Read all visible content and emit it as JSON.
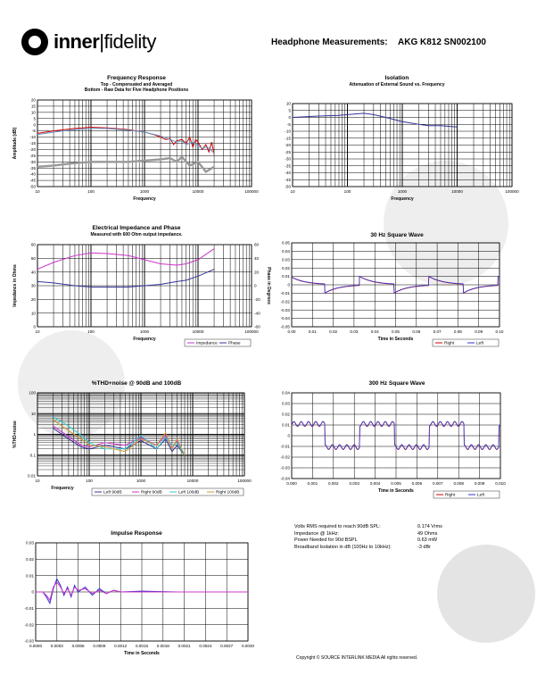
{
  "header": {
    "logo_left": "inner",
    "logo_right": "fidelity",
    "title": "Headphone Measurements:",
    "model": "AKG K812 SN002100"
  },
  "specs": [
    {
      "label": "Volts RMS required to reach 90dB SPL:",
      "value": "0.174 Vrms"
    },
    {
      "label": "Impedance @ 1kHz:",
      "value": "49 Ohms"
    },
    {
      "label": "Power Needed for 90d BSPL",
      "value": "0.63 mW"
    },
    {
      "label": "Broadband Isolation in dB (100Hz to 10kHz):",
      "value": "-3 dBr"
    }
  ],
  "copyright": "Copyright © SOURCE INTERLINK MEDIA All rights reserved.",
  "chart_data": [
    {
      "id": "fr",
      "type": "line",
      "title": "Frequency Response",
      "subtitle": "Top - Compensated and Averaged\nBottom - Raw Data for Five Headphone Positions",
      "xlabel": "Frequency",
      "ylabel": "Amplitude (dB)",
      "xscale": "log",
      "xlim": [
        10,
        100000
      ],
      "ylim": [
        -50,
        20
      ],
      "xticks": [
        "10",
        "100",
        "1000",
        "10000",
        "100000"
      ],
      "yticks": [
        "20",
        "15",
        "10",
        "5",
        "0",
        "-5",
        "-10",
        "-15",
        "-20",
        "-25",
        "-30",
        "-35",
        "-40",
        "-45",
        "-50"
      ],
      "series": [
        {
          "color": "#cc0000",
          "x": [
            10,
            20,
            50,
            100,
            200,
            500,
            1000,
            1500,
            2000,
            2500,
            3000,
            3500,
            4000,
            5000,
            6000,
            7000,
            8000,
            9000,
            10000,
            12000,
            14000,
            16000,
            18000,
            20000
          ],
          "y": [
            -7,
            -5,
            -3,
            -2,
            -2.5,
            -4,
            -6,
            -8,
            -10,
            -12,
            -11,
            -16,
            -13,
            -12,
            -15,
            -10,
            -18,
            -12,
            -14,
            -20,
            -16,
            -22,
            -14,
            -24
          ]
        },
        {
          "color": "#6699cc",
          "x": [
            10,
            20,
            50,
            100,
            200,
            500,
            1000,
            2000,
            3000,
            4000,
            5000,
            6000,
            8000,
            10000,
            12000,
            15000,
            20000
          ],
          "y": [
            -8,
            -6,
            -4,
            -3,
            -3,
            -4.5,
            -6,
            -9,
            -12,
            -14,
            -13,
            -16,
            -14,
            -17,
            -19,
            -18,
            -23
          ]
        },
        {
          "color": "#999999",
          "x": [
            10,
            20,
            50,
            100,
            200,
            500,
            1000,
            2000,
            3000,
            4000,
            5000,
            7000,
            10000,
            14000,
            20000
          ],
          "y": [
            -34,
            -33,
            -31,
            -30,
            -30,
            -30,
            -29,
            -28,
            -27,
            -30,
            -26,
            -33,
            -30,
            -38,
            -34
          ]
        }
      ]
    },
    {
      "id": "iso",
      "type": "line",
      "title": "Isolation",
      "subtitle": "Attenuation of External Sound vs. Frequency",
      "xlabel": "Frequency",
      "ylabel": "Reduction in dB",
      "xscale": "log",
      "xlim": [
        10,
        100000
      ],
      "ylim": [
        -50,
        10
      ],
      "xticks": [
        "10",
        "100",
        "1000",
        "10000",
        "100000"
      ],
      "yticks": [
        "10",
        "5",
        "0",
        "-5",
        "-10",
        "-15",
        "-20",
        "-25",
        "-30",
        "-35",
        "-40",
        "-45",
        "-50"
      ],
      "series": [
        {
          "color": "#333399",
          "x": [
            10,
            30,
            70,
            100,
            200,
            300,
            500,
            1000,
            2000,
            3000,
            5000,
            10000
          ],
          "y": [
            0,
            1,
            1.5,
            2,
            3,
            2,
            0,
            -3,
            -5,
            -6,
            -6,
            -7
          ]
        }
      ]
    },
    {
      "id": "imp",
      "type": "line",
      "title": "Electrical Impedance and Phase",
      "subtitle": "Measured with 600 Ohm output impedance.",
      "xlabel": "Frequency",
      "ylabel": "Impedance in Ohms",
      "y2label": "Phase in Degrees",
      "xscale": "log",
      "xlim": [
        10,
        100000
      ],
      "ylim": [
        0,
        60
      ],
      "y2lim": [
        -60,
        60
      ],
      "xticks": [
        "10",
        "100",
        "1000",
        "10000",
        "100000"
      ],
      "yticks": [
        "60",
        "50",
        "40",
        "30",
        "20",
        "10",
        "0"
      ],
      "y2ticks": [
        "60",
        "40",
        "20",
        "0",
        "-20",
        "-40",
        "-60"
      ],
      "legend": [
        "Impedance",
        "Phase"
      ],
      "series": [
        {
          "name": "Impedance",
          "color": "#cc33cc",
          "x": [
            10,
            20,
            50,
            100,
            200,
            500,
            1000,
            2000,
            4000,
            6000,
            10000,
            20000
          ],
          "y": [
            42,
            47,
            52,
            54,
            53.5,
            52,
            49,
            46,
            45,
            46,
            49,
            57
          ]
        },
        {
          "name": "Phase",
          "color": "#333399",
          "x": [
            10,
            20,
            50,
            100,
            200,
            500,
            1000,
            2000,
            4000,
            6000,
            10000,
            20000
          ],
          "y": [
            33,
            32,
            30,
            29,
            29,
            29,
            30,
            31,
            33,
            34,
            37,
            42
          ]
        }
      ]
    },
    {
      "id": "sq30",
      "type": "line",
      "title": "30 Hz Square Wave",
      "xlabel": "Time in Seconds",
      "ylabel": "Volts",
      "xlim": [
        0,
        0.1
      ],
      "ylim": [
        -0.05,
        0.05
      ],
      "xticks": [
        "0.00",
        "0.01",
        "0.02",
        "0.03",
        "0.04",
        "0.05",
        "0.06",
        "0.07",
        "0.08",
        "0.09",
        "0.10"
      ],
      "yticks": [
        "0.05",
        "0.04",
        "0.03",
        "0.02",
        "0.01",
        "0",
        "-0.01",
        "-0.02",
        "-0.03",
        "-0.04",
        "-0.05"
      ],
      "legend": [
        "Right",
        "Left"
      ],
      "period": 0.0333,
      "series": [
        {
          "name": "Right",
          "color": "#cc0000"
        },
        {
          "name": "Left",
          "color": "#3333cc"
        }
      ]
    },
    {
      "id": "thd",
      "type": "line",
      "title": "%THD+noise @ 90dB and 100dB",
      "xlabel": "Frequency",
      "ylabel": "%THD+noise",
      "xscale": "log",
      "yscale": "log",
      "xlim": [
        10,
        100000
      ],
      "ylim": [
        0.01,
        100
      ],
      "xticks": [
        "10",
        "100",
        "1000",
        "10000",
        "100000"
      ],
      "yticks": [
        "100",
        "10",
        "1",
        "0.1",
        "0.01"
      ],
      "legend": [
        "Left 90dB",
        "Right 90dB",
        "Left 100dB",
        "Right 100dB"
      ],
      "series": [
        {
          "name": "Left 90dB",
          "color": "#333399",
          "x": [
            20,
            40,
            70,
            100,
            200,
            500,
            1000,
            2000,
            3000,
            4000,
            5000,
            7000
          ],
          "y": [
            2,
            0.6,
            0.25,
            0.2,
            0.3,
            0.2,
            0.5,
            0.2,
            0.6,
            0.15,
            0.3,
            0.1
          ]
        },
        {
          "name": "Right 90dB",
          "color": "#cc33cc",
          "x": [
            20,
            40,
            70,
            100,
            200,
            500,
            1000,
            2000,
            3000,
            4000,
            5000,
            7000
          ],
          "y": [
            2.5,
            0.8,
            0.3,
            0.25,
            0.4,
            0.3,
            0.7,
            0.3,
            0.9,
            0.2,
            0.5,
            0.1
          ]
        },
        {
          "name": "Left 100dB",
          "color": "#33cccc",
          "x": [
            20,
            40,
            70,
            100,
            200,
            500,
            1000,
            2000,
            3000,
            4000,
            5000,
            7000
          ],
          "y": [
            7,
            2.5,
            0.9,
            0.4,
            0.2,
            0.2,
            0.9,
            0.2,
            0.7,
            0.3,
            0.4,
            0.1
          ]
        },
        {
          "name": "Right 100dB",
          "color": "#cc9933",
          "x": [
            20,
            40,
            70,
            100,
            200,
            500,
            1000,
            2000,
            3000,
            4000,
            5000,
            7000
          ],
          "y": [
            5,
            1.5,
            0.6,
            0.3,
            0.25,
            0.15,
            0.6,
            0.3,
            1.2,
            0.2,
            0.6,
            0.1
          ]
        }
      ]
    },
    {
      "id": "sq300",
      "type": "line",
      "title": "300 Hz Square Wave",
      "xlabel": "Time in Seconds",
      "ylabel": "Volts",
      "xlim": [
        0,
        0.01
      ],
      "ylim": [
        -0.04,
        0.04
      ],
      "xticks": [
        "0.000",
        "0.001",
        "0.002",
        "0.003",
        "0.004",
        "0.005",
        "0.006",
        "0.007",
        "0.008",
        "0.009",
        "0.010"
      ],
      "yticks": [
        "0.04",
        "0.03",
        "0.02",
        "0.01",
        "0",
        "-0.01",
        "-0.02",
        "-0.03",
        "-0.04"
      ],
      "legend": [
        "Right",
        "Left"
      ],
      "period": 0.00333,
      "series": [
        {
          "name": "Right",
          "color": "#cc0000"
        },
        {
          "name": "Left",
          "color": "#3333cc"
        }
      ]
    },
    {
      "id": "imp_resp",
      "type": "line",
      "title": "Impulse Response",
      "xlabel": "Time in Seconds",
      "xlim": [
        0,
        0.003
      ],
      "ylim": [
        -0.03,
        0.03
      ],
      "xticks": [
        "0.0000",
        "0.0003",
        "0.0006",
        "0.0009",
        "0.0012",
        "0.0015",
        "0.0018",
        "0.0021",
        "0.0024",
        "0.0027",
        "0.0030"
      ],
      "yticks": [
        "0.03",
        "0.02",
        "0.01",
        "0",
        "-0.01",
        "-0.02",
        "-0.03"
      ],
      "series": [
        {
          "color": "#3333cc",
          "x": [
            0,
            0.0001,
            0.00015,
            0.0002,
            0.00025,
            0.0003,
            0.00035,
            0.0004,
            0.00045,
            0.0005,
            0.00055,
            0.0006,
            0.0007,
            0.0008,
            0.0009,
            0.001,
            0.0011,
            0.0012,
            0.0015,
            0.002,
            0.003
          ],
          "y": [
            0,
            0,
            -0.003,
            -0.007,
            0.002,
            0.008,
            0.004,
            -0.002,
            0.003,
            -0.003,
            0.004,
            0,
            0.003,
            -0.002,
            0.002,
            -0.001,
            0.001,
            0,
            0.0005,
            0,
            0
          ]
        },
        {
          "color": "#cc33cc",
          "x": [
            0,
            0.0001,
            0.00015,
            0.0002,
            0.00025,
            0.0003,
            0.00035,
            0.0004,
            0.00045,
            0.0005,
            0.00055,
            0.0006,
            0.0007,
            0.0008,
            0.0009,
            0.001,
            0.0011,
            0.0012,
            0.0015,
            0.002,
            0.003
          ],
          "y": [
            0,
            0,
            -0.002,
            -0.005,
            0.003,
            0.006,
            0.003,
            -0.001,
            0.002,
            -0.002,
            0.003,
            0.001,
            0.002,
            -0.001,
            0.001,
            -0.001,
            0.001,
            0,
            0,
            0,
            0
          ]
        }
      ]
    }
  ]
}
